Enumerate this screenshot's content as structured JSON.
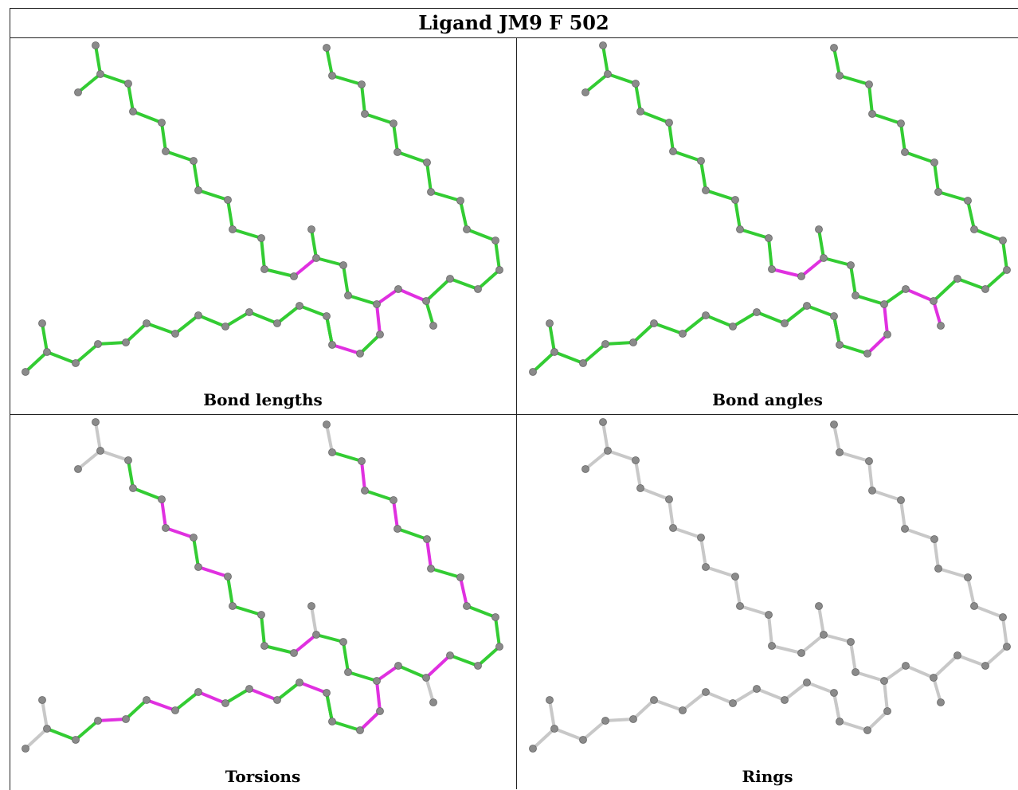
{
  "title": "Ligand JM9 F 502",
  "panels": [
    {
      "id": "bond-lengths",
      "caption": "Bond lengths"
    },
    {
      "id": "bond-angles",
      "caption": "Bond angles"
    },
    {
      "id": "torsions",
      "caption": "Torsions"
    },
    {
      "id": "rings",
      "caption": "Rings"
    }
  ],
  "colors": {
    "ok": "#33cc33",
    "outlier": "#e030e0",
    "neutral": "#c8c8c8",
    "atom": "#8a8a8a"
  }
}
